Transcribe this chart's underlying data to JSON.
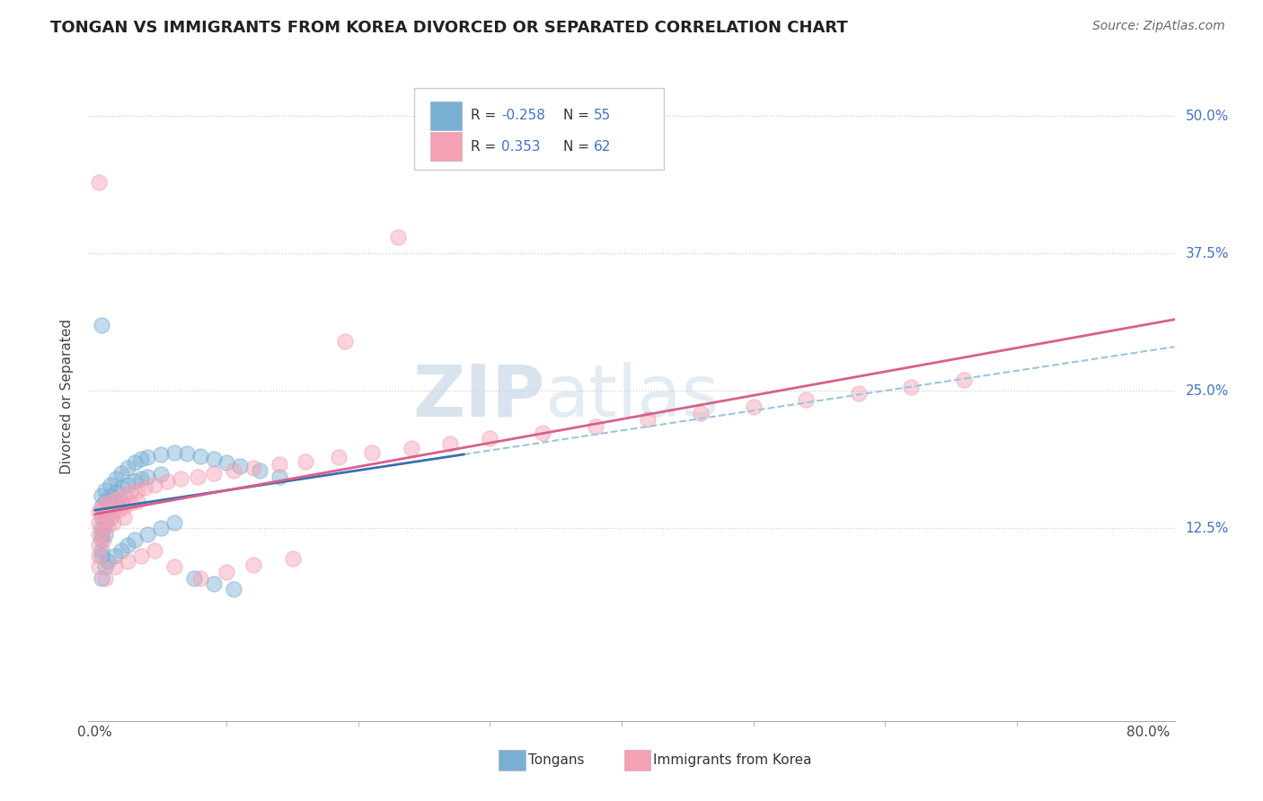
{
  "title": "TONGAN VS IMMIGRANTS FROM KOREA DIVORCED OR SEPARATED CORRELATION CHART",
  "source": "Source: ZipAtlas.com",
  "ylabel": "Divorced or Separated",
  "xlim": [
    -0.005,
    0.82
  ],
  "ylim": [
    -0.05,
    0.54
  ],
  "grid_color": "#cccccc",
  "background_color": "#ffffff",
  "tongan_R": -0.258,
  "tongan_N": 55,
  "korea_R": 0.353,
  "korea_N": 62,
  "blue_dot_color": "#7aafd4",
  "pink_dot_color": "#f4a0b5",
  "blue_line_color": "#3a6faf",
  "pink_line_color": "#d95f8a",
  "blue_dash_color": "#9ec4dd",
  "pink_dash_color": "#e8a0bb",
  "tongan_scatter_x": [
    0.005,
    0.005,
    0.005,
    0.005,
    0.005,
    0.005,
    0.005,
    0.005,
    0.008,
    0.008,
    0.008,
    0.008,
    0.008,
    0.012,
    0.012,
    0.012,
    0.012,
    0.016,
    0.016,
    0.016,
    0.02,
    0.02,
    0.02,
    0.025,
    0.025,
    0.03,
    0.03,
    0.035,
    0.035,
    0.04,
    0.04,
    0.05,
    0.05,
    0.06,
    0.07,
    0.08,
    0.09,
    0.1,
    0.11,
    0.125,
    0.14,
    0.005,
    0.005,
    0.008,
    0.01,
    0.015,
    0.02,
    0.025,
    0.03,
    0.04,
    0.05,
    0.06,
    0.075,
    0.09,
    0.105
  ],
  "tongan_scatter_y": [
    0.155,
    0.145,
    0.135,
    0.125,
    0.12,
    0.115,
    0.105,
    0.1,
    0.16,
    0.15,
    0.14,
    0.13,
    0.12,
    0.165,
    0.155,
    0.145,
    0.135,
    0.17,
    0.158,
    0.148,
    0.175,
    0.162,
    0.15,
    0.18,
    0.165,
    0.185,
    0.168,
    0.188,
    0.17,
    0.19,
    0.172,
    0.192,
    0.174,
    0.194,
    0.193,
    0.191,
    0.188,
    0.185,
    0.182,
    0.178,
    0.172,
    0.31,
    0.08,
    0.09,
    0.095,
    0.1,
    0.105,
    0.11,
    0.115,
    0.12,
    0.125,
    0.13,
    0.08,
    0.075,
    0.07
  ],
  "korea_scatter_x": [
    0.003,
    0.003,
    0.003,
    0.003,
    0.003,
    0.003,
    0.006,
    0.006,
    0.006,
    0.006,
    0.01,
    0.01,
    0.01,
    0.014,
    0.014,
    0.014,
    0.018,
    0.018,
    0.022,
    0.022,
    0.022,
    0.027,
    0.027,
    0.032,
    0.032,
    0.038,
    0.045,
    0.055,
    0.065,
    0.078,
    0.09,
    0.105,
    0.12,
    0.14,
    0.16,
    0.185,
    0.21,
    0.24,
    0.27,
    0.3,
    0.34,
    0.38,
    0.42,
    0.46,
    0.5,
    0.54,
    0.58,
    0.62,
    0.66,
    0.003,
    0.008,
    0.015,
    0.025,
    0.035,
    0.045,
    0.06,
    0.08,
    0.1,
    0.12,
    0.15,
    0.19,
    0.23
  ],
  "korea_scatter_y": [
    0.14,
    0.13,
    0.12,
    0.11,
    0.1,
    0.09,
    0.145,
    0.135,
    0.125,
    0.115,
    0.148,
    0.138,
    0.128,
    0.15,
    0.14,
    0.13,
    0.152,
    0.142,
    0.155,
    0.145,
    0.135,
    0.158,
    0.148,
    0.16,
    0.15,
    0.162,
    0.165,
    0.168,
    0.17,
    0.172,
    0.175,
    0.178,
    0.18,
    0.183,
    0.186,
    0.19,
    0.194,
    0.198,
    0.202,
    0.207,
    0.212,
    0.218,
    0.224,
    0.23,
    0.236,
    0.242,
    0.248,
    0.254,
    0.26,
    0.44,
    0.08,
    0.09,
    0.095,
    0.1,
    0.105,
    0.09,
    0.08,
    0.085,
    0.092,
    0.098,
    0.295,
    0.39
  ]
}
